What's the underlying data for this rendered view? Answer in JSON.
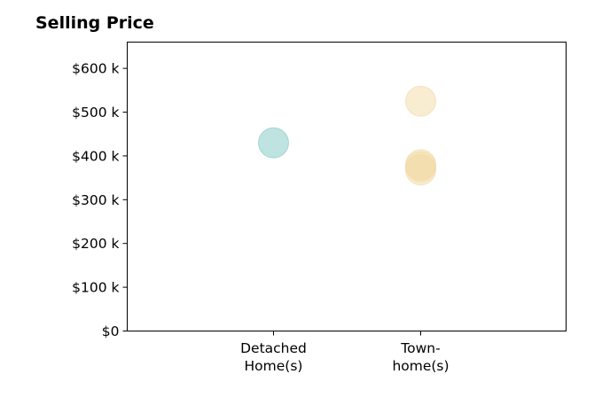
{
  "chart_data": {
    "type": "scatter",
    "title": "Selling Price",
    "xlabel": "",
    "ylabel": "",
    "categories": [
      [
        "Detached",
        "Home(s)"
      ],
      [
        "Town-",
        "home(s)"
      ]
    ],
    "y_ticks": [
      {
        "value": 0,
        "label": "$0"
      },
      {
        "value": 100000,
        "label": "$100 k"
      },
      {
        "value": 200000,
        "label": "$200 k"
      },
      {
        "value": 300000,
        "label": "$300 k"
      },
      {
        "value": 400000,
        "label": "$400 k"
      },
      {
        "value": 500000,
        "label": "$500 k"
      },
      {
        "value": 600000,
        "label": "$600 k"
      }
    ],
    "ylim": [
      0,
      660000
    ],
    "grid": false,
    "series": [
      {
        "category_index": 0,
        "color": "#80c8c3",
        "values": [
          430000
        ]
      },
      {
        "category_index": 1,
        "color": "#f2d9a3",
        "values": [
          525000,
          380000,
          375000,
          368000
        ]
      }
    ]
  }
}
